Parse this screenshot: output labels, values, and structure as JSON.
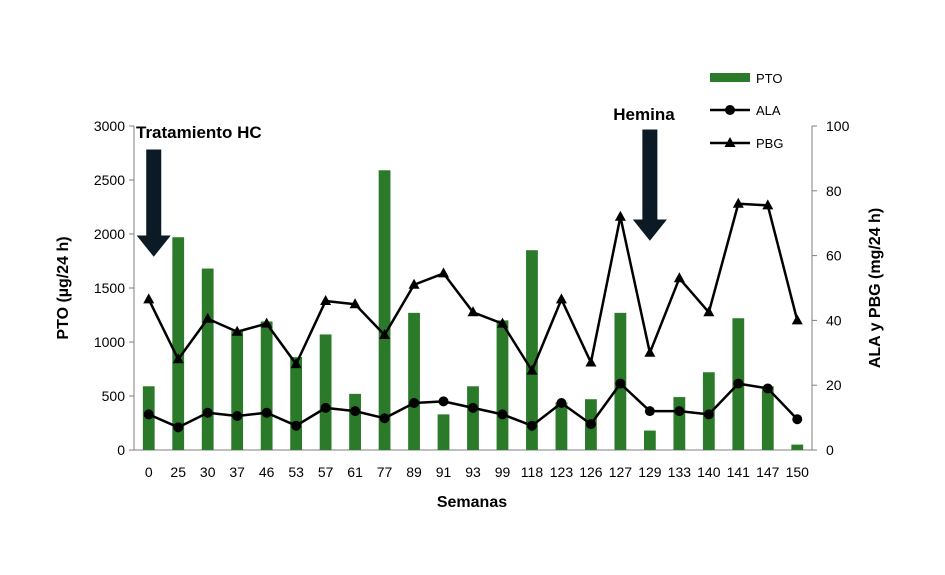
{
  "chart_data": {
    "type": "bar+line",
    "xlabel": "Semanas",
    "ylabel_left": "PTO (µg/24 h)",
    "ylabel_right": "ALA y PBG (mg/24 h)",
    "ylim_left": [
      0,
      3000
    ],
    "ylim_right": [
      0,
      100
    ],
    "yticks_left": [
      "0",
      "500",
      "1000",
      "1500",
      "2000",
      "2500",
      "3000"
    ],
    "yticks_right": [
      "0",
      "20",
      "40",
      "60",
      "80",
      "100"
    ],
    "categories": [
      "0",
      "25",
      "30",
      "37",
      "46",
      "53",
      "57",
      "61",
      "77",
      "89",
      "91",
      "93",
      "99",
      "118",
      "123",
      "126",
      "127",
      "129",
      "133",
      "140",
      "141",
      "147",
      "150"
    ],
    "series": [
      {
        "name": "PTO",
        "type": "bar",
        "axis": "left",
        "color": "#2a7a2a",
        "values": [
          590,
          1970,
          1680,
          1100,
          1190,
          860,
          1070,
          520,
          2590,
          1270,
          330,
          590,
          1200,
          1850,
          440,
          470,
          1270,
          180,
          490,
          720,
          1220,
          590,
          50
        ]
      },
      {
        "name": "ALA",
        "type": "line",
        "axis": "right",
        "marker": "circle",
        "color": "#000000",
        "values": [
          11,
          7,
          11.5,
          10.5,
          11.5,
          7.5,
          13,
          12,
          9.8,
          14.5,
          15,
          13,
          11,
          7.5,
          14.5,
          8,
          20.5,
          12,
          12,
          11,
          20.5,
          19,
          9.5
        ]
      },
      {
        "name": "PBG",
        "type": "line",
        "axis": "right",
        "marker": "triangle",
        "color": "#000000",
        "values": [
          46.5,
          28,
          40.5,
          36.5,
          39,
          26.5,
          46,
          45,
          35.5,
          51,
          54.5,
          42.5,
          39,
          24.5,
          46.5,
          27,
          72,
          30,
          53,
          42.5,
          76,
          75.5,
          40
        ]
      }
    ],
    "annotations": [
      {
        "text": "Tratamiento HC",
        "at_category": "0",
        "arrow": "down"
      },
      {
        "text": "Hemina",
        "at_category": "129",
        "arrow": "down"
      }
    ],
    "legend_position": "top-right",
    "grid": false
  }
}
